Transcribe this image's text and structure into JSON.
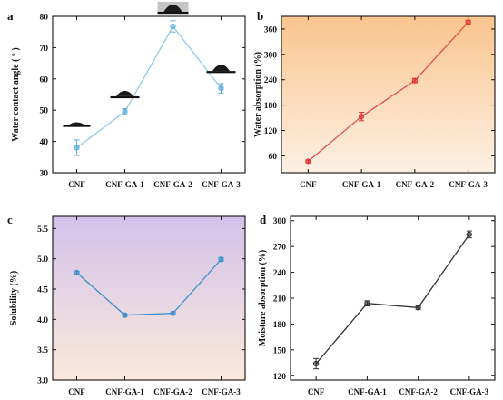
{
  "chart_data": [
    {
      "panel": "a",
      "type": "line",
      "categories": [
        "CNF",
        "CNF-GA-1",
        "CNF-GA-2",
        "CNF-GA-3"
      ],
      "values": [
        38.0,
        49.5,
        76.8,
        57.0
      ],
      "errors": [
        2.5,
        1.0,
        1.8,
        1.5
      ],
      "ylabel": "Water contact angle ( ° )",
      "ylim": [
        30,
        80
      ],
      "yticks": [
        30,
        40,
        50,
        60,
        70,
        80
      ],
      "line_color": "#8fc8ea",
      "marker_color": "#5aaee0",
      "background": "none",
      "droplet_icons": [
        "droplet-contact-angle-icon",
        "droplet-contact-angle-icon",
        "droplet-contact-angle-icon",
        "droplet-contact-angle-icon"
      ]
    },
    {
      "panel": "b",
      "type": "line",
      "categories": [
        "CNF",
        "CNF-GA-1",
        "CNF-GA-2",
        "CNF-GA-3"
      ],
      "values": [
        47,
        153,
        238,
        376
      ],
      "errors": [
        3,
        10,
        5,
        5
      ],
      "ylabel": "Water absorption (%)",
      "ylim": [
        20,
        390
      ],
      "yticks": [
        60,
        120,
        180,
        240,
        300,
        360
      ],
      "line_color": "#e05050",
      "marker_color": "#e03030",
      "background": "gradient-orange"
    },
    {
      "panel": "c",
      "type": "line",
      "categories": [
        "CNF",
        "CNF-GA-1",
        "CNF-GA-2",
        "CNF-GA-3"
      ],
      "values": [
        4.77,
        4.07,
        4.1,
        4.99
      ],
      "errors": [
        0.02,
        0.02,
        0.02,
        0.03
      ],
      "ylabel": "Solubility (%)",
      "ylim": [
        3.0,
        5.7
      ],
      "yticks": [
        3.0,
        3.5,
        4.0,
        4.5,
        5.0,
        5.5
      ],
      "line_color": "#3a90c8",
      "marker_color": "#3a90c8",
      "background": "gradient-purple"
    },
    {
      "panel": "d",
      "type": "line",
      "categories": [
        "CNF",
        "CNF-GA-1",
        "CNF-GA-2",
        "CNF-GA-3"
      ],
      "values": [
        134,
        204,
        199,
        284
      ],
      "errors": [
        6,
        3,
        2,
        4
      ],
      "ylabel": "Moisture absorption (%)",
      "ylim": [
        115,
        305
      ],
      "yticks": [
        120,
        150,
        180,
        210,
        240,
        270,
        300
      ],
      "line_color": "#333333",
      "marker_color": "#333333",
      "background": "none"
    }
  ]
}
